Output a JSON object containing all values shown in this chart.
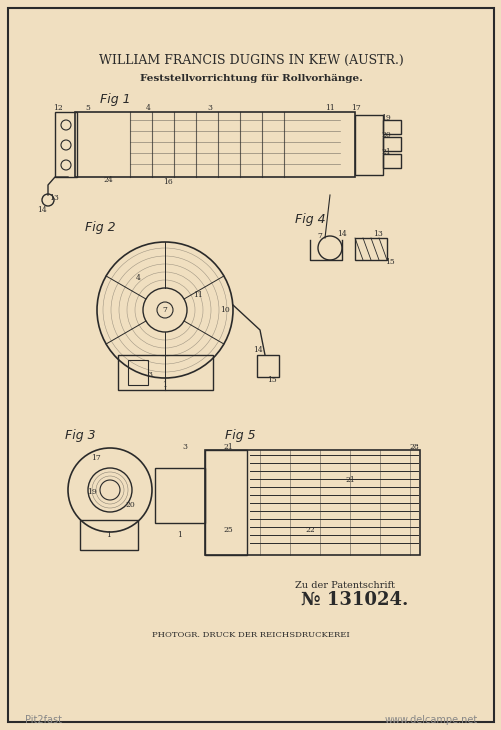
{
  "bg_color": "#f0dfc0",
  "border_color": "#2a2a2a",
  "text_color": "#2a2a2a",
  "title_line1": "WILLIAM FRANCIS DUGINS IN KEW (AUSTR.)",
  "title_line2": "Feststellvorrichtung für Rollvorhänge.",
  "fig_labels": [
    "Fig 1",
    "Fig 2",
    "Fig 3",
    "Fig 4",
    "Fig 5"
  ],
  "bottom_text1": "Zu der Patentschrift",
  "bottom_number": "№ 131024.",
  "footer_text": "PHOTOGR. DRUCK DER REICHSDRUCKEREI",
  "watermark1": "Pit2fast",
  "watermark2": "www.delcampe.net"
}
